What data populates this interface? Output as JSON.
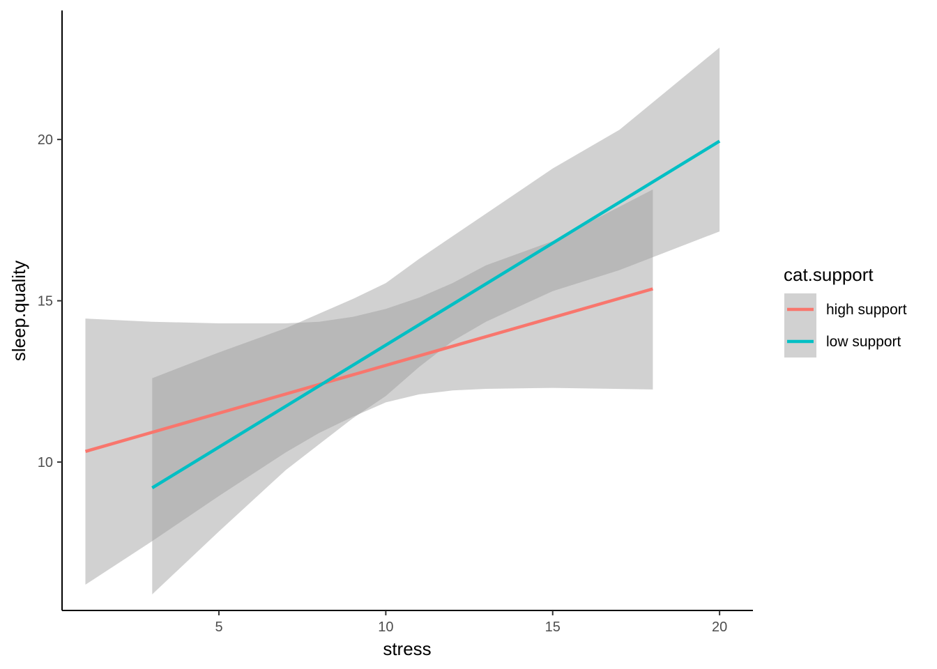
{
  "chart_data": {
    "type": "line",
    "xlabel": "stress",
    "ylabel": "sleep.quality",
    "xlim": [
      0.3,
      21.0
    ],
    "ylim": [
      5.4,
      24.0
    ],
    "x_ticks": [
      5,
      10,
      15,
      20
    ],
    "y_ticks": [
      10,
      15,
      20
    ],
    "grid": false,
    "legend": {
      "title": "cat.support",
      "position": "right"
    },
    "series": [
      {
        "name": "high support",
        "color": "#F8766D",
        "x": [
          1,
          18
        ],
        "y": [
          10.33,
          15.37
        ],
        "ci_band": {
          "x": [
            1,
            3,
            5,
            7,
            8,
            9,
            10,
            11,
            12,
            13,
            15,
            18
          ],
          "lower": [
            6.2,
            7.55,
            8.95,
            10.3,
            10.9,
            11.4,
            11.85,
            12.1,
            12.22,
            12.27,
            12.3,
            12.25
          ],
          "upper": [
            14.45,
            14.35,
            14.3,
            14.3,
            14.35,
            14.5,
            14.75,
            15.1,
            15.55,
            16.1,
            16.85,
            18.45
          ]
        }
      },
      {
        "name": "low support",
        "color": "#00BFC4",
        "x": [
          3,
          20
        ],
        "y": [
          9.2,
          19.95
        ],
        "ci_band": {
          "x": [
            3,
            5,
            7,
            8,
            9,
            10,
            11,
            12,
            13,
            15,
            17,
            20
          ],
          "lower": [
            5.9,
            7.85,
            9.75,
            10.55,
            11.35,
            12.05,
            12.95,
            13.75,
            14.35,
            15.3,
            15.95,
            17.15
          ],
          "upper": [
            12.6,
            13.4,
            14.15,
            14.6,
            15.05,
            15.55,
            16.3,
            17.0,
            17.7,
            19.1,
            20.3,
            22.85
          ]
        }
      }
    ]
  }
}
